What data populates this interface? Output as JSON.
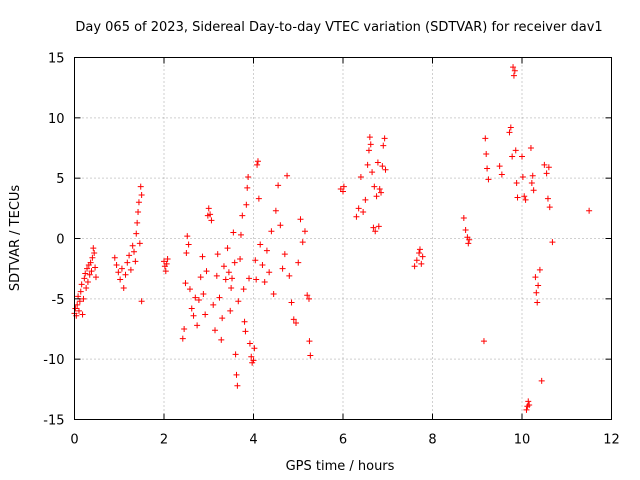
{
  "chart_data": {
    "type": "scatter",
    "title": "Day 065 of 2023, Sidereal Day-to-day VTEC variation (SDTVAR) for receiver dav1",
    "xlabel": "GPS time / hours",
    "ylabel": "SDTVAR / TECUs",
    "xlim": [
      0,
      12
    ],
    "ylim": [
      -15,
      15
    ],
    "xticks": [
      0,
      2,
      4,
      6,
      8,
      10,
      12
    ],
    "yticks": [
      -15,
      -10,
      -5,
      0,
      5,
      10,
      15
    ],
    "grid": true,
    "marker": "+",
    "color": "#ff0000",
    "series": [
      {
        "name": "SDTVAR",
        "points": [
          [
            0.0,
            -6.2
          ],
          [
            0.02,
            -5.8
          ],
          [
            0.04,
            -6.4
          ],
          [
            0.06,
            -5.5
          ],
          [
            0.08,
            -4.8
          ],
          [
            0.1,
            -6.0
          ],
          [
            0.12,
            -5.2
          ],
          [
            0.14,
            -4.4
          ],
          [
            0.16,
            -3.8
          ],
          [
            0.18,
            -6.3
          ],
          [
            0.2,
            -5.0
          ],
          [
            0.22,
            -3.3
          ],
          [
            0.24,
            -2.9
          ],
          [
            0.26,
            -4.1
          ],
          [
            0.28,
            -2.5
          ],
          [
            0.3,
            -3.6
          ],
          [
            0.32,
            -2.2
          ],
          [
            0.34,
            -3.0
          ],
          [
            0.36,
            -2.0
          ],
          [
            0.38,
            -2.7
          ],
          [
            0.4,
            -1.6
          ],
          [
            0.42,
            -0.8
          ],
          [
            0.44,
            -1.2
          ],
          [
            0.46,
            -2.4
          ],
          [
            0.48,
            -3.2
          ],
          [
            0.9,
            -1.6
          ],
          [
            0.94,
            -2.2
          ],
          [
            0.98,
            -2.8
          ],
          [
            1.02,
            -3.4
          ],
          [
            1.06,
            -2.5
          ],
          [
            1.1,
            -4.1
          ],
          [
            1.14,
            -3.0
          ],
          [
            1.18,
            -2.0
          ],
          [
            1.22,
            -1.4
          ],
          [
            1.26,
            -2.6
          ],
          [
            1.3,
            -0.6
          ],
          [
            1.33,
            -1.1
          ],
          [
            1.36,
            -1.9
          ],
          [
            1.38,
            0.4
          ],
          [
            1.4,
            1.3
          ],
          [
            1.42,
            2.2
          ],
          [
            1.44,
            3.0
          ],
          [
            1.46,
            -0.4
          ],
          [
            1.48,
            4.3
          ],
          [
            1.5,
            3.6
          ],
          [
            1.5,
            -5.2
          ],
          [
            2.0,
            -1.9
          ],
          [
            2.02,
            -2.3
          ],
          [
            2.04,
            -2.7
          ],
          [
            2.06,
            -2.1
          ],
          [
            2.08,
            -1.7
          ],
          [
            2.42,
            -8.3
          ],
          [
            2.45,
            -7.5
          ],
          [
            2.48,
            -3.7
          ],
          [
            2.5,
            -1.2
          ],
          [
            2.52,
            0.2
          ],
          [
            2.55,
            -0.5
          ],
          [
            2.58,
            -4.2
          ],
          [
            2.62,
            -5.8
          ],
          [
            2.66,
            -6.4
          ],
          [
            2.7,
            -4.9
          ],
          [
            2.74,
            -7.2
          ],
          [
            2.78,
            -5.1
          ],
          [
            2.82,
            -3.2
          ],
          [
            2.86,
            -1.5
          ],
          [
            2.88,
            -4.6
          ],
          [
            2.92,
            -6.3
          ],
          [
            2.95,
            -2.7
          ],
          [
            2.98,
            1.9
          ],
          [
            3.0,
            2.5
          ],
          [
            3.03,
            2.0
          ],
          [
            3.06,
            1.5
          ],
          [
            3.1,
            -5.5
          ],
          [
            3.14,
            -7.6
          ],
          [
            3.18,
            -3.1
          ],
          [
            3.2,
            -1.3
          ],
          [
            3.24,
            -4.9
          ],
          [
            3.28,
            -8.4
          ],
          [
            3.3,
            -6.6
          ],
          [
            3.34,
            -2.3
          ],
          [
            3.38,
            -3.4
          ],
          [
            3.42,
            -0.8
          ],
          [
            3.45,
            -2.8
          ],
          [
            3.48,
            -6.0
          ],
          [
            3.5,
            -4.1
          ],
          [
            3.52,
            -3.3
          ],
          [
            3.55,
            0.5
          ],
          [
            3.58,
            -2.0
          ],
          [
            3.6,
            -9.6
          ],
          [
            3.62,
            -11.3
          ],
          [
            3.64,
            -12.2
          ],
          [
            3.66,
            -5.2
          ],
          [
            3.7,
            -1.7
          ],
          [
            3.72,
            0.3
          ],
          [
            3.75,
            1.9
          ],
          [
            3.78,
            -4.2
          ],
          [
            3.8,
            -6.9
          ],
          [
            3.82,
            -7.7
          ],
          [
            3.84,
            2.8
          ],
          [
            3.86,
            4.2
          ],
          [
            3.88,
            5.1
          ],
          [
            3.9,
            -3.3
          ],
          [
            3.92,
            -8.7
          ],
          [
            3.95,
            -9.8
          ],
          [
            3.97,
            -10.3
          ],
          [
            4.0,
            -10.1
          ],
          [
            4.02,
            -9.1
          ],
          [
            4.04,
            -1.8
          ],
          [
            4.06,
            -3.4
          ],
          [
            4.08,
            6.1
          ],
          [
            4.1,
            6.4
          ],
          [
            4.12,
            3.3
          ],
          [
            4.15,
            -0.5
          ],
          [
            4.2,
            -2.2
          ],
          [
            4.25,
            -3.6
          ],
          [
            4.3,
            -1.0
          ],
          [
            4.35,
            -2.8
          ],
          [
            4.4,
            0.6
          ],
          [
            4.45,
            -4.6
          ],
          [
            4.5,
            2.3
          ],
          [
            4.55,
            4.4
          ],
          [
            4.6,
            1.1
          ],
          [
            4.65,
            -2.5
          ],
          [
            4.7,
            -1.3
          ],
          [
            4.75,
            5.2
          ],
          [
            4.8,
            -3.1
          ],
          [
            4.85,
            -5.3
          ],
          [
            4.9,
            -6.7
          ],
          [
            4.95,
            -7.0
          ],
          [
            5.0,
            -2.0
          ],
          [
            5.05,
            1.6
          ],
          [
            5.1,
            -0.3
          ],
          [
            5.15,
            0.6
          ],
          [
            5.2,
            -4.7
          ],
          [
            5.24,
            -5.0
          ],
          [
            5.25,
            -8.5
          ],
          [
            5.27,
            -9.7
          ],
          [
            5.95,
            4.1
          ],
          [
            6.0,
            3.9
          ],
          [
            6.02,
            4.3
          ],
          [
            6.3,
            1.8
          ],
          [
            6.35,
            2.5
          ],
          [
            6.4,
            5.1
          ],
          [
            6.45,
            2.2
          ],
          [
            6.5,
            3.2
          ],
          [
            6.55,
            6.1
          ],
          [
            6.58,
            7.3
          ],
          [
            6.6,
            8.4
          ],
          [
            6.62,
            7.8
          ],
          [
            6.65,
            5.5
          ],
          [
            6.68,
            0.9
          ],
          [
            6.7,
            4.3
          ],
          [
            6.72,
            0.6
          ],
          [
            6.75,
            3.5
          ],
          [
            6.78,
            6.3
          ],
          [
            6.8,
            1.0
          ],
          [
            6.82,
            4.1
          ],
          [
            6.85,
            3.8
          ],
          [
            6.88,
            6.0
          ],
          [
            6.9,
            7.7
          ],
          [
            6.93,
            8.3
          ],
          [
            6.95,
            5.7
          ],
          [
            7.6,
            -2.3
          ],
          [
            7.65,
            -1.8
          ],
          [
            7.7,
            -1.2
          ],
          [
            7.72,
            -0.9
          ],
          [
            7.75,
            -2.1
          ],
          [
            7.78,
            -1.5
          ],
          [
            8.7,
            1.7
          ],
          [
            8.74,
            0.7
          ],
          [
            8.78,
            0.1
          ],
          [
            8.8,
            -0.4
          ],
          [
            8.82,
            -0.1
          ],
          [
            9.15,
            -8.5
          ],
          [
            9.18,
            8.3
          ],
          [
            9.2,
            7.0
          ],
          [
            9.22,
            5.8
          ],
          [
            9.25,
            4.9
          ],
          [
            9.5,
            6.0
          ],
          [
            9.55,
            5.3
          ],
          [
            9.72,
            8.8
          ],
          [
            9.75,
            9.2
          ],
          [
            9.78,
            6.8
          ],
          [
            9.8,
            14.2
          ],
          [
            9.82,
            13.5
          ],
          [
            9.84,
            13.9
          ],
          [
            9.86,
            7.3
          ],
          [
            9.88,
            4.6
          ],
          [
            9.9,
            3.4
          ],
          [
            10.0,
            6.8
          ],
          [
            10.02,
            5.1
          ],
          [
            10.05,
            3.5
          ],
          [
            10.08,
            3.2
          ],
          [
            10.1,
            -14.2
          ],
          [
            10.12,
            -13.9
          ],
          [
            10.14,
            -13.5
          ],
          [
            10.16,
            -13.8
          ],
          [
            10.2,
            7.5
          ],
          [
            10.22,
            4.6
          ],
          [
            10.24,
            5.2
          ],
          [
            10.26,
            4.0
          ],
          [
            10.3,
            -3.2
          ],
          [
            10.32,
            -4.5
          ],
          [
            10.34,
            -5.3
          ],
          [
            10.36,
            -3.9
          ],
          [
            10.4,
            -2.6
          ],
          [
            10.44,
            -11.8
          ],
          [
            10.5,
            6.1
          ],
          [
            10.55,
            5.4
          ],
          [
            10.58,
            3.3
          ],
          [
            10.6,
            5.9
          ],
          [
            10.62,
            2.6
          ],
          [
            10.68,
            -0.3
          ],
          [
            11.5,
            2.3
          ]
        ]
      }
    ]
  }
}
